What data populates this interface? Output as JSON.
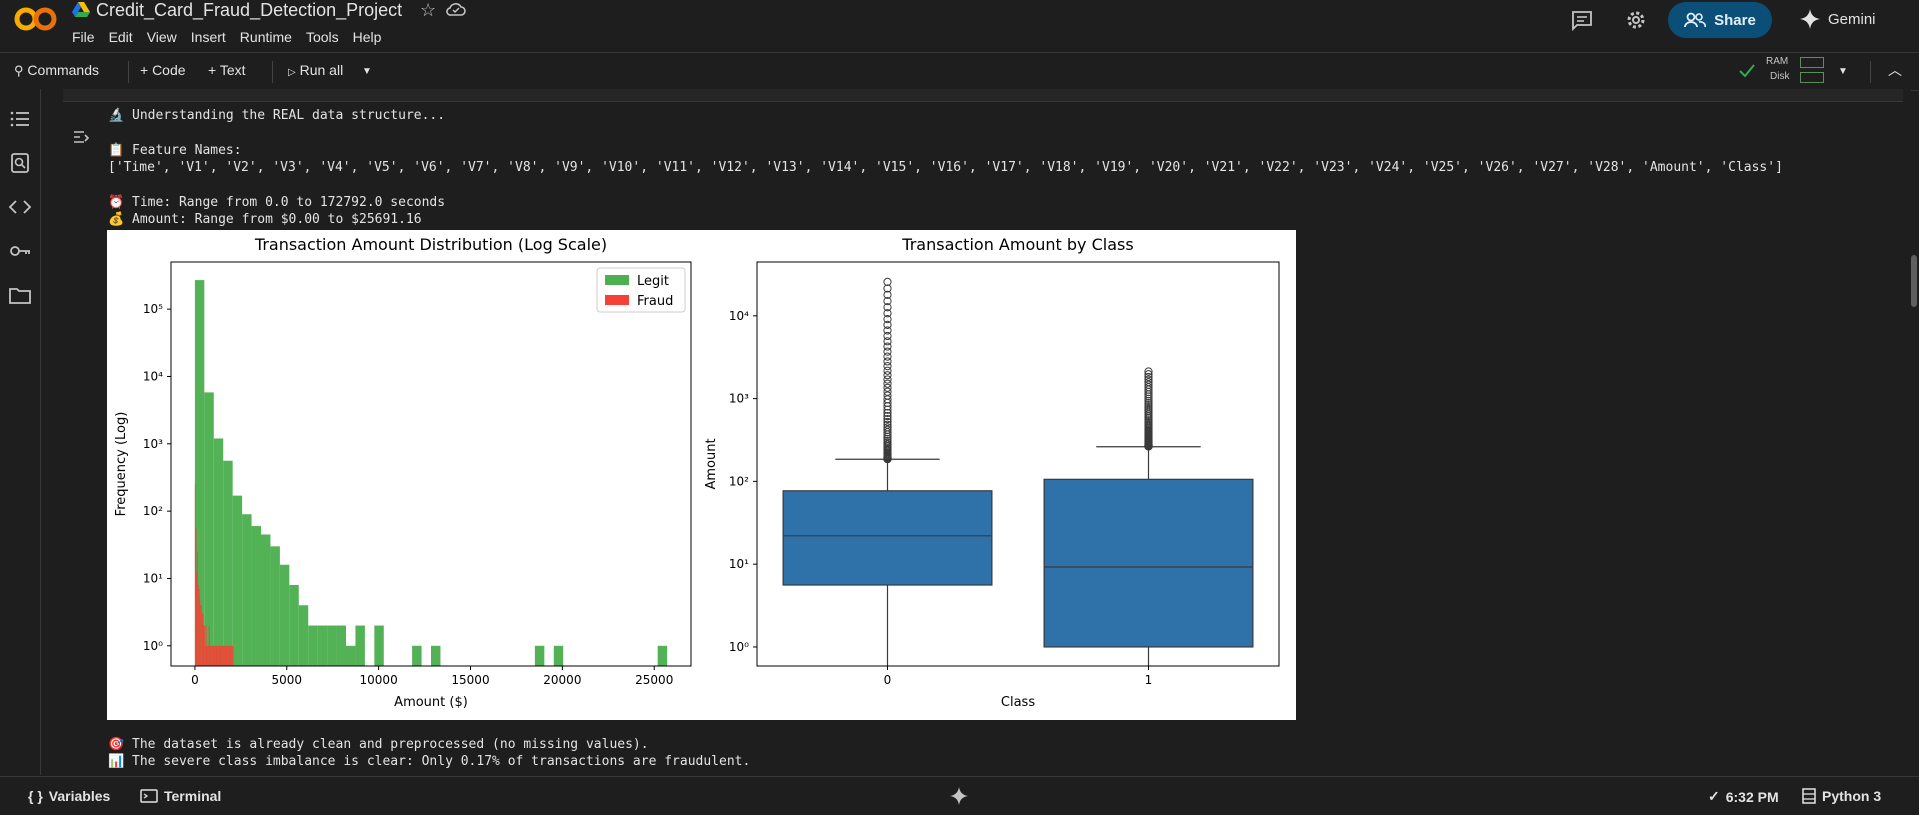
{
  "app": {
    "title": "Credit_Card_Fraud_Detection_Project",
    "menu": [
      "File",
      "Edit",
      "View",
      "Insert",
      "Runtime",
      "Tools",
      "Help"
    ],
    "share_label": "Share",
    "gemini_label": "Gemini"
  },
  "toolbar": {
    "commands_label": "Commands",
    "code_label": "+ Code",
    "text_label": "+ Text",
    "run_all_label": "Run all",
    "ram_label": "RAM",
    "disk_label": "Disk"
  },
  "output": {
    "line1": "🔬 Understanding the REAL data structure...",
    "line2": "📋 Feature Names:",
    "line3": "['Time', 'V1', 'V2', 'V3', 'V4', 'V5', 'V6', 'V7', 'V8', 'V9', 'V10', 'V11', 'V12', 'V13', 'V14', 'V15', 'V16', 'V17', 'V18', 'V19', 'V20', 'V21', 'V22', 'V23', 'V24', 'V25', 'V26', 'V27', 'V28', 'Amount', 'Class']",
    "line4": "⏰ Time: Range from 0.0 to 172792.0 seconds",
    "line5": "💰 Amount: Range from $0.00 to $25691.16",
    "line6": "🎯 The dataset is already clean and preprocessed (no missing values).",
    "line7": "📊 The severe class imbalance is clear: Only 0.17% of transactions are fraudulent."
  },
  "chart_data": [
    {
      "type": "histogram",
      "title": "Transaction Amount Distribution (Log Scale)",
      "xlabel": "Amount ($)",
      "ylabel": "Frequency (Log)",
      "xlim": [
        -1300,
        27000
      ],
      "ylim_log10": [
        -0.3,
        5.7
      ],
      "x_ticks": [
        0,
        5000,
        10000,
        15000,
        20000,
        25000
      ],
      "y_tick_labels": [
        "10⁰",
        "10¹",
        "10²",
        "10³",
        "10⁴",
        "10⁵"
      ],
      "legend_position": "top-right",
      "series": [
        {
          "name": "Legit",
          "color": "#4caf50",
          "bin_width": 514,
          "bin_starts": [
            0,
            514,
            1028,
            1542,
            2056,
            2570,
            3084,
            3598,
            4112,
            4626,
            5140,
            5654,
            6168,
            6682,
            7196,
            7710,
            8224,
            8738,
            9766,
            11822,
            12850,
            18504,
            19532,
            25186
          ],
          "counts": [
            270000,
            5800,
            1200,
            560,
            170,
            90,
            60,
            45,
            30,
            16,
            8,
            4,
            2,
            2,
            2,
            2,
            1,
            2,
            2,
            1,
            1,
            1,
            1,
            1
          ]
        },
        {
          "name": "Fraud",
          "color": "#f44336",
          "bin_width": 42,
          "bin_starts": [
            0,
            42,
            84,
            126,
            168,
            210,
            252,
            294,
            336,
            378,
            420,
            462,
            504,
            546,
            588,
            630,
            672,
            714,
            756,
            798,
            840,
            882,
            924,
            966,
            1008,
            1050,
            1092,
            1134,
            1176,
            1218,
            1260,
            1302,
            1344,
            1386,
            1428,
            1470,
            1512,
            1554,
            1596,
            1638,
            1680,
            1722,
            1764,
            1806,
            1848,
            1890,
            1932,
            1974,
            2016,
            2058
          ],
          "counts": [
            250,
            55,
            12,
            25,
            8,
            7,
            5,
            4,
            4,
            3,
            3,
            2,
            2,
            1,
            2,
            1,
            1,
            1,
            2,
            1,
            1,
            1,
            1,
            1,
            1,
            1,
            1,
            1,
            1,
            1,
            1,
            1,
            1,
            1,
            1,
            1,
            1,
            1,
            1,
            1,
            1,
            1,
            1,
            1,
            1,
            1,
            1,
            1,
            1,
            1
          ]
        }
      ]
    },
    {
      "type": "box",
      "title": "Transaction Amount by Class",
      "xlabel": "Class",
      "ylabel": "Amount",
      "categories": [
        "0",
        "1"
      ],
      "ylim_log10": [
        -0.23,
        4.65
      ],
      "y_tick_labels": [
        "10⁰",
        "10¹",
        "10²",
        "10³",
        "10⁴"
      ],
      "color": "#2e72a9",
      "boxes": [
        {
          "q1": 5.6,
          "median": 22,
          "q3": 77,
          "whisker_low": 0.6,
          "whisker_high": 185,
          "outlier_max": 25691,
          "outlier_min": 186
        },
        {
          "q1": 1.0,
          "median": 9.25,
          "q3": 105.9,
          "whisker_low": 0.6,
          "whisker_high": 262,
          "outlier_max": 2125,
          "outlier_min": 265
        }
      ]
    }
  ],
  "statusbar": {
    "variables_label": "Variables",
    "terminal_label": "Terminal",
    "time": "6:32 PM",
    "kernel": "Python 3"
  }
}
